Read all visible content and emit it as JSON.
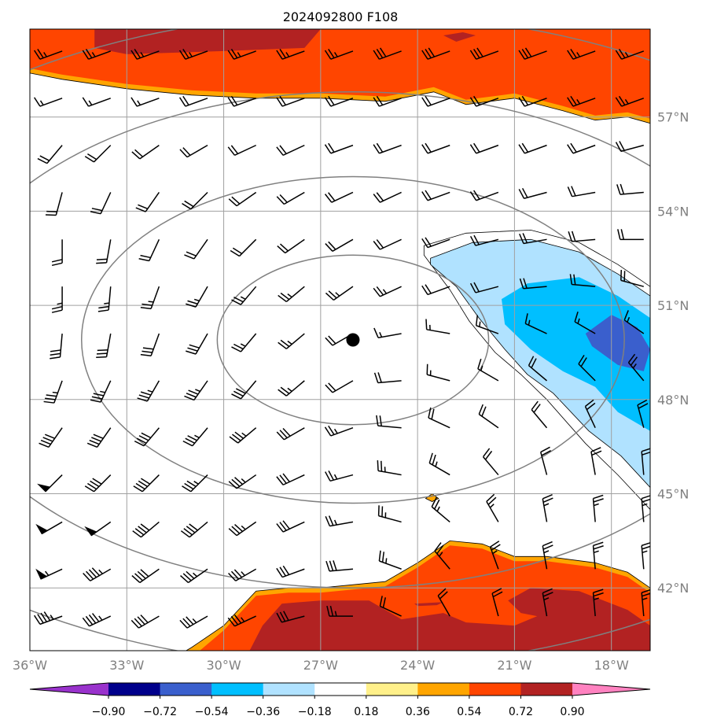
{
  "chart_data": {
    "type": "heatmap",
    "title": "2024092800 F108",
    "x_ticks": [
      "36°W",
      "33°W",
      "30°W",
      "27°W",
      "24°W",
      "21°W",
      "18°W"
    ],
    "y_ticks": [
      "57°N",
      "54°N",
      "51°N",
      "48°N",
      "45°N",
      "42°N"
    ],
    "x_range": [
      -36,
      -16.8
    ],
    "y_range": [
      40.0,
      59.8
    ],
    "grid": true,
    "colorbar": {
      "ticks": [
        "−0.90",
        "−0.72",
        "−0.54",
        "−0.36",
        "−0.18",
        "0.18",
        "0.36",
        "0.54",
        "0.72",
        "0.90"
      ],
      "colors": [
        "#9932cc",
        "#00008b",
        "#3a5fcd",
        "#00bfff",
        "#b0e2ff",
        "#ffffff",
        "#fff08a",
        "#ffa500",
        "#ff4500",
        "#b22222",
        "#ff82c0"
      ],
      "extend": "both"
    },
    "cyclone_center": {
      "lon": -26.0,
      "lat": 49.9
    },
    "regions": [
      {
        "name": "north-band",
        "level": 0.36,
        "polygon": [
          [
            -36,
            59.8
          ],
          [
            -16.8,
            59.8
          ],
          [
            -16.8,
            56.8
          ],
          [
            -17.5,
            57.0
          ],
          [
            -18.5,
            56.9
          ],
          [
            -19.5,
            57.2
          ],
          [
            -21,
            57.6
          ],
          [
            -22.5,
            57.4
          ],
          [
            -23.5,
            57.8
          ],
          [
            -25,
            57.5
          ],
          [
            -27,
            57.6
          ],
          [
            -29,
            57.6
          ],
          [
            -31,
            57.7
          ],
          [
            -33,
            57.9
          ],
          [
            -35,
            58.2
          ],
          [
            -36,
            58.4
          ]
        ]
      },
      {
        "name": "north-band",
        "level": 0.54,
        "polygon": [
          [
            -36,
            59.8
          ],
          [
            -16.8,
            59.8
          ],
          [
            -16.8,
            56.95
          ],
          [
            -17.5,
            57.15
          ],
          [
            -18.5,
            57.05
          ],
          [
            -19.5,
            57.35
          ],
          [
            -21,
            57.75
          ],
          [
            -22.5,
            57.55
          ],
          [
            -23.5,
            57.95
          ],
          [
            -25,
            57.65
          ],
          [
            -27,
            57.75
          ],
          [
            -29,
            57.75
          ],
          [
            -31,
            57.85
          ],
          [
            -33,
            58.05
          ],
          [
            -35,
            58.35
          ],
          [
            -36,
            58.55
          ]
        ]
      },
      {
        "name": "north-band",
        "level": 0.72,
        "polygon": [
          [
            -34,
            59.8
          ],
          [
            -27,
            59.8
          ],
          [
            -27.5,
            59.2
          ],
          [
            -30,
            59.1
          ],
          [
            -33,
            59.0
          ],
          [
            -34,
            59.2
          ]
        ]
      },
      {
        "name": "north-band",
        "level": 0.72,
        "polygon": [
          [
            -23.2,
            59.6
          ],
          [
            -22.6,
            59.7
          ],
          [
            -22.2,
            59.6
          ],
          [
            -22.8,
            59.4
          ]
        ]
      },
      {
        "name": "east-trough",
        "level": -0.18,
        "polygon": [
          [
            -23.8,
            52.9
          ],
          [
            -22.5,
            53.3
          ],
          [
            -20.5,
            53.4
          ],
          [
            -19,
            53.0
          ],
          [
            -17.8,
            52.3
          ],
          [
            -16.8,
            51.6
          ],
          [
            -16.8,
            44.5
          ],
          [
            -17.8,
            45.6
          ],
          [
            -18.8,
            46.6
          ],
          [
            -20,
            48.0
          ],
          [
            -20.8,
            48.8
          ],
          [
            -21.6,
            49.5
          ],
          [
            -22.4,
            50.5
          ],
          [
            -23,
            51.5
          ],
          [
            -23.8,
            52.6
          ]
        ]
      },
      {
        "name": "east-trough",
        "level": -0.36,
        "polygon": [
          [
            -23.6,
            52.5
          ],
          [
            -22.3,
            53.0
          ],
          [
            -20.5,
            53.1
          ],
          [
            -19,
            52.7
          ],
          [
            -17.8,
            52.0
          ],
          [
            -16.8,
            51.3
          ],
          [
            -16.8,
            45.2
          ],
          [
            -17.7,
            46.2
          ],
          [
            -18.7,
            47.0
          ],
          [
            -19.8,
            48.2
          ],
          [
            -20.6,
            48.8
          ],
          [
            -21.3,
            49.6
          ],
          [
            -22.1,
            50.6
          ],
          [
            -22.8,
            51.6
          ],
          [
            -23.6,
            52.3
          ]
        ]
      },
      {
        "name": "east-trough",
        "level": -0.54,
        "polygon": [
          [
            -21.4,
            51.2
          ],
          [
            -20.6,
            51.7
          ],
          [
            -19.0,
            51.9
          ],
          [
            -17.8,
            51.3
          ],
          [
            -16.8,
            50.6
          ],
          [
            -16.8,
            47.0
          ],
          [
            -17.8,
            47.6
          ],
          [
            -18.5,
            48.4
          ],
          [
            -19.5,
            48.9
          ],
          [
            -20.5,
            49.6
          ],
          [
            -21.3,
            50.4
          ]
        ]
      },
      {
        "name": "east-trough",
        "level": -0.72,
        "polygon": [
          [
            -18.8,
            50.1
          ],
          [
            -18.0,
            50.7
          ],
          [
            -17.2,
            50.3
          ],
          [
            -16.8,
            49.6
          ],
          [
            -17.0,
            48.9
          ],
          [
            -17.8,
            49.1
          ],
          [
            -18.6,
            49.7
          ]
        ]
      },
      {
        "name": "south-band",
        "level": 0.36,
        "polygon": [
          [
            -31.5,
            39.8
          ],
          [
            -16.8,
            39.8
          ],
          [
            -16.8,
            42.0
          ],
          [
            -17.5,
            42.5
          ],
          [
            -18.5,
            42.8
          ],
          [
            -20,
            43.0
          ],
          [
            -21,
            43.0
          ],
          [
            -22,
            43.4
          ],
          [
            -23,
            43.5
          ],
          [
            -24,
            42.8
          ],
          [
            -25,
            42.2
          ],
          [
            -26,
            42.1
          ],
          [
            -27,
            42.0
          ],
          [
            -28,
            42.0
          ],
          [
            -29,
            41.9
          ],
          [
            -30,
            40.8
          ],
          [
            -31,
            40.1
          ]
        ]
      },
      {
        "name": "south-band",
        "level": 0.54,
        "polygon": [
          [
            -31.3,
            39.8
          ],
          [
            -16.8,
            39.8
          ],
          [
            -16.8,
            41.85
          ],
          [
            -17.5,
            42.35
          ],
          [
            -18.5,
            42.65
          ],
          [
            -20,
            42.85
          ],
          [
            -21,
            42.85
          ],
          [
            -22,
            43.25
          ],
          [
            -23,
            43.35
          ],
          [
            -24,
            42.65
          ],
          [
            -25,
            42.05
          ],
          [
            -26,
            41.95
          ],
          [
            -27,
            41.85
          ],
          [
            -28,
            41.85
          ],
          [
            -29,
            41.75
          ],
          [
            -30,
            40.65
          ],
          [
            -30.8,
            39.95
          ]
        ]
      },
      {
        "name": "south-band",
        "level": 0.72,
        "polygon": [
          [
            -29.3,
            39.8
          ],
          [
            -16.8,
            39.8
          ],
          [
            -16.8,
            40.8
          ],
          [
            -17.5,
            41.3
          ],
          [
            -19,
            41.9
          ],
          [
            -20.5,
            42.0
          ],
          [
            -21.2,
            41.6
          ],
          [
            -20.8,
            41.2
          ],
          [
            -20.3,
            41.1
          ],
          [
            -21.0,
            40.8
          ],
          [
            -22.5,
            40.9
          ],
          [
            -23.2,
            41.2
          ],
          [
            -24.5,
            41.0
          ],
          [
            -25.5,
            41.6
          ],
          [
            -27,
            41.6
          ],
          [
            -28.2,
            41.5
          ],
          [
            -28.8,
            40.8
          ]
        ]
      },
      {
        "name": "south-band",
        "level": 0.72,
        "polygon": [
          [
            -24.1,
            41.5
          ],
          [
            -23.2,
            41.55
          ],
          [
            -23.4,
            41.45
          ],
          [
            -24.0,
            41.42
          ]
        ]
      },
      {
        "name": "spot",
        "level": 0.36,
        "polygon": [
          [
            -23.55,
            45.0
          ],
          [
            -23.35,
            44.85
          ],
          [
            -23.55,
            44.75
          ],
          [
            -23.75,
            44.85
          ]
        ]
      }
    ],
    "isobars": [
      {
        "center": [
          -26.0,
          49.9
        ],
        "rx_deg": 4.2,
        "ry_deg": 2.7
      },
      {
        "center": [
          -26.0,
          49.9
        ],
        "rx_deg": 8.4,
        "ry_deg": 5.2
      },
      {
        "center": [
          -26.0,
          49.9
        ],
        "rx_deg": 12.9,
        "ry_deg": 7.9
      },
      {
        "center": [
          -26.0,
          49.9
        ],
        "rx_deg": 17.8,
        "ry_deg": 10.4
      }
    ],
    "wind_barbs": {
      "lons": [
        -35,
        -33.5,
        -32,
        -30.5,
        -29,
        -27.5,
        -26,
        -24.5,
        -23,
        -21.5,
        -20,
        -18.5,
        -17
      ],
      "lats": [
        59.1,
        57.6,
        56.1,
        54.6,
        53.1,
        51.6,
        50.1,
        48.6,
        47.1,
        45.6,
        44.1,
        42.6,
        41.1
      ],
      "dir_deg": [
        [
          250,
          250,
          250,
          250,
          250,
          250,
          250,
          250,
          250,
          250,
          250,
          250,
          250
        ],
        [
          250,
          250,
          250,
          250,
          250,
          250,
          250,
          250,
          250,
          250,
          250,
          250,
          250
        ],
        [
          220,
          225,
          235,
          240,
          245,
          245,
          250,
          250,
          250,
          250,
          250,
          250,
          255
        ],
        [
          195,
          205,
          215,
          225,
          235,
          240,
          245,
          245,
          250,
          250,
          255,
          260,
          265
        ],
        [
          180,
          190,
          205,
          215,
          225,
          235,
          240,
          245,
          250,
          255,
          260,
          265,
          270
        ],
        [
          180,
          185,
          200,
          210,
          220,
          230,
          235,
          245,
          250,
          255,
          265,
          275,
          285
        ],
        [
          185,
          190,
          200,
          210,
          220,
          230,
          240,
          260,
          280,
          290,
          295,
          300,
          305
        ],
        [
          200,
          205,
          210,
          215,
          220,
          230,
          240,
          265,
          285,
          300,
          310,
          315,
          320
        ],
        [
          215,
          215,
          220,
          220,
          230,
          240,
          250,
          275,
          295,
          305,
          320,
          335,
          345
        ],
        [
          225,
          225,
          225,
          225,
          235,
          245,
          255,
          280,
          300,
          320,
          345,
          350,
          355
        ],
        [
          240,
          235,
          230,
          230,
          235,
          245,
          260,
          285,
          310,
          330,
          350,
          355,
          355
        ],
        [
          245,
          240,
          235,
          235,
          240,
          250,
          265,
          290,
          320,
          340,
          350,
          355,
          355
        ],
        [
          250,
          245,
          240,
          240,
          245,
          255,
          270,
          295,
          330,
          345,
          350,
          355,
          355
        ]
      ],
      "speed_kt": [
        [
          25,
          25,
          25,
          25,
          25,
          25,
          25,
          30,
          30,
          30,
          30,
          25,
          25
        ],
        [
          15,
          15,
          15,
          20,
          20,
          20,
          20,
          20,
          20,
          20,
          20,
          25,
          25
        ],
        [
          20,
          20,
          20,
          20,
          20,
          20,
          20,
          20,
          20,
          20,
          20,
          20,
          20
        ],
        [
          20,
          20,
          20,
          20,
          20,
          20,
          20,
          20,
          20,
          20,
          20,
          20,
          20
        ],
        [
          20,
          20,
          20,
          20,
          20,
          20,
          20,
          20,
          20,
          20,
          20,
          20,
          20
        ],
        [
          25,
          25,
          25,
          25,
          25,
          25,
          25,
          25,
          20,
          20,
          20,
          20,
          20
        ],
        [
          30,
          30,
          30,
          30,
          25,
          25,
          20,
          15,
          15,
          15,
          15,
          15,
          15
        ],
        [
          35,
          35,
          35,
          35,
          30,
          25,
          20,
          20,
          15,
          15,
          20,
          20,
          25
        ],
        [
          40,
          40,
          40,
          35,
          35,
          30,
          25,
          20,
          20,
          20,
          20,
          20,
          20
        ],
        [
          50,
          40,
          40,
          35,
          35,
          30,
          25,
          25,
          25,
          20,
          20,
          20,
          20
        ],
        [
          50,
          50,
          40,
          40,
          35,
          30,
          25,
          25,
          25,
          25,
          25,
          25,
          25
        ],
        [
          55,
          45,
          40,
          35,
          35,
          30,
          30,
          25,
          25,
          25,
          25,
          25,
          25
        ],
        [
          45,
          45,
          40,
          35,
          35,
          30,
          25,
          20,
          20,
          20,
          25,
          25,
          25
        ]
      ]
    }
  }
}
